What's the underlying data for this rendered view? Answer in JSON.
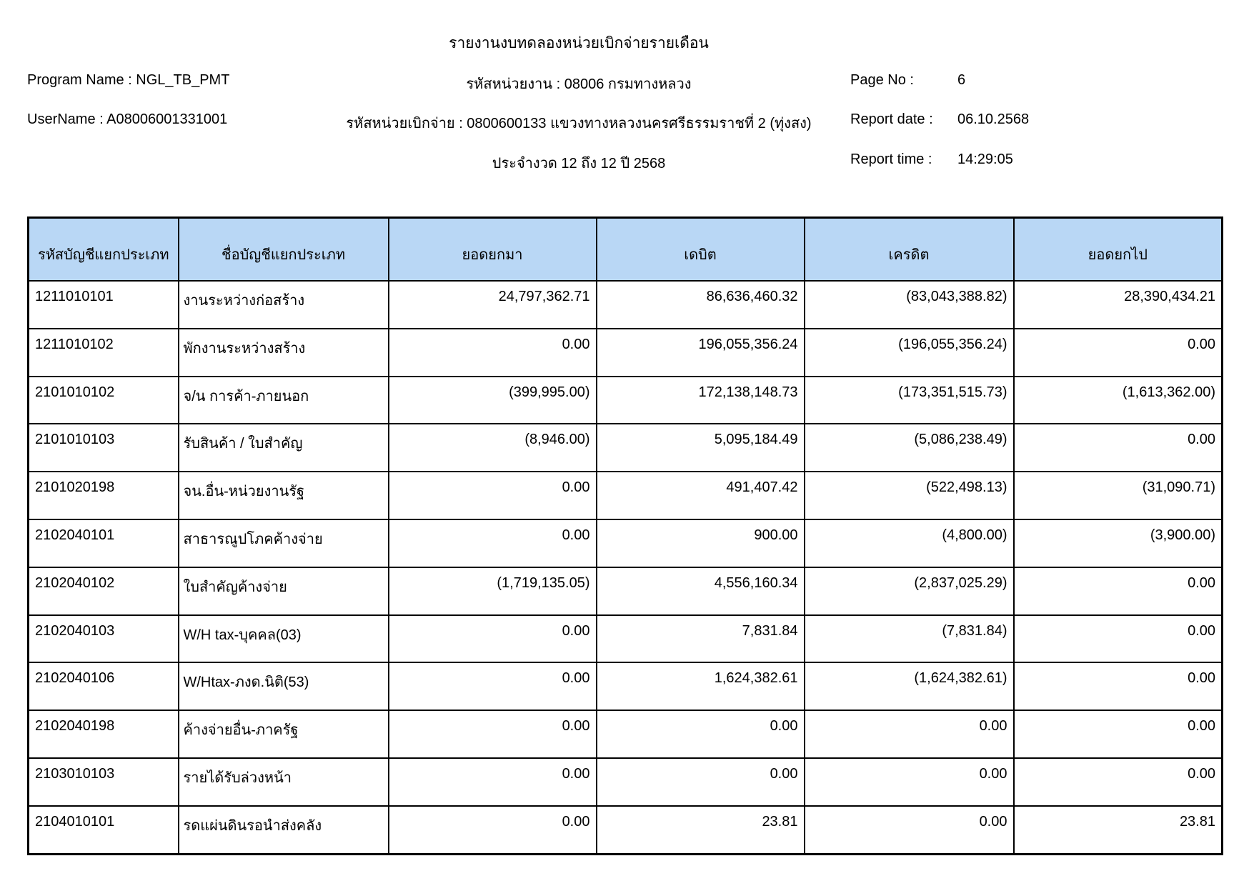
{
  "header": {
    "title": "รายงานงบทดลองหน่วยเบิกจ่ายรายเดือน",
    "program_name": "Program Name : NGL_TB_PMT",
    "user_name": "UserName : A08006001331001",
    "agency_code": "รหัสหน่วยงาน : 08006 กรมทางหลวง",
    "disbursement_unit": "รหัสหน่วยเบิกจ่าย : 0800600133 แขวงทางหลวงนครศรีธรรมราชที่ 2 (ทุ่งสง)",
    "period": "ประจำงวด 12 ถึง 12 ปี 2568",
    "page_no_label": "Page No :",
    "page_no": "6",
    "report_date_label": "Report date :",
    "report_date": "06.10.2568",
    "report_time_label": "Report time :",
    "report_time": "14:29:05"
  },
  "table": {
    "header_bg": "#B9D7F5",
    "columns": [
      "รหัสบัญชีแยกประเภท",
      "ชื่อบัญชีแยกประเภท",
      "ยอดยกมา",
      "เดบิต",
      "เครดิต",
      "ยอดยกไป"
    ],
    "rows": [
      [
        "1211010101",
        "งานระหว่างก่อสร้าง",
        "24,797,362.71",
        "86,636,460.32",
        "(83,043,388.82)",
        "28,390,434.21"
      ],
      [
        "1211010102",
        "พักงานระหว่างสร้าง",
        "0.00",
        "196,055,356.24",
        "(196,055,356.24)",
        "0.00"
      ],
      [
        "2101010102",
        "จ/น การค้า-ภายนอก",
        "(399,995.00)",
        "172,138,148.73",
        "(173,351,515.73)",
        "(1,613,362.00)"
      ],
      [
        "2101010103",
        "รับสินค้า / ใบสำคัญ",
        "(8,946.00)",
        "5,095,184.49",
        "(5,086,238.49)",
        "0.00"
      ],
      [
        "2101020198",
        "จน.อื่น-หน่วยงานรัฐ",
        "0.00",
        "491,407.42",
        "(522,498.13)",
        "(31,090.71)"
      ],
      [
        "2102040101",
        "สาธารณูปโภคค้างจ่าย",
        "0.00",
        "900.00",
        "(4,800.00)",
        "(3,900.00)"
      ],
      [
        "2102040102",
        "ใบสำคัญค้างจ่าย",
        "(1,719,135.05)",
        "4,556,160.34",
        "(2,837,025.29)",
        "0.00"
      ],
      [
        "2102040103",
        "W/H tax-บุคคล(03)",
        "0.00",
        "7,831.84",
        "(7,831.84)",
        "0.00"
      ],
      [
        "2102040106",
        "W/Htax-ภงด.นิติ(53)",
        "0.00",
        "1,624,382.61",
        "(1,624,382.61)",
        "0.00"
      ],
      [
        "2102040198",
        "ค้างจ่ายอื่น-ภาครัฐ",
        "0.00",
        "0.00",
        "0.00",
        "0.00"
      ],
      [
        "2103010103",
        "รายได้รับล่วงหน้า",
        "0.00",
        "0.00",
        "0.00",
        "0.00"
      ],
      [
        "2104010101",
        "รดแผ่นดินรอนำส่งคลัง",
        "0.00",
        "23.81",
        "0.00",
        "23.81"
      ]
    ]
  }
}
